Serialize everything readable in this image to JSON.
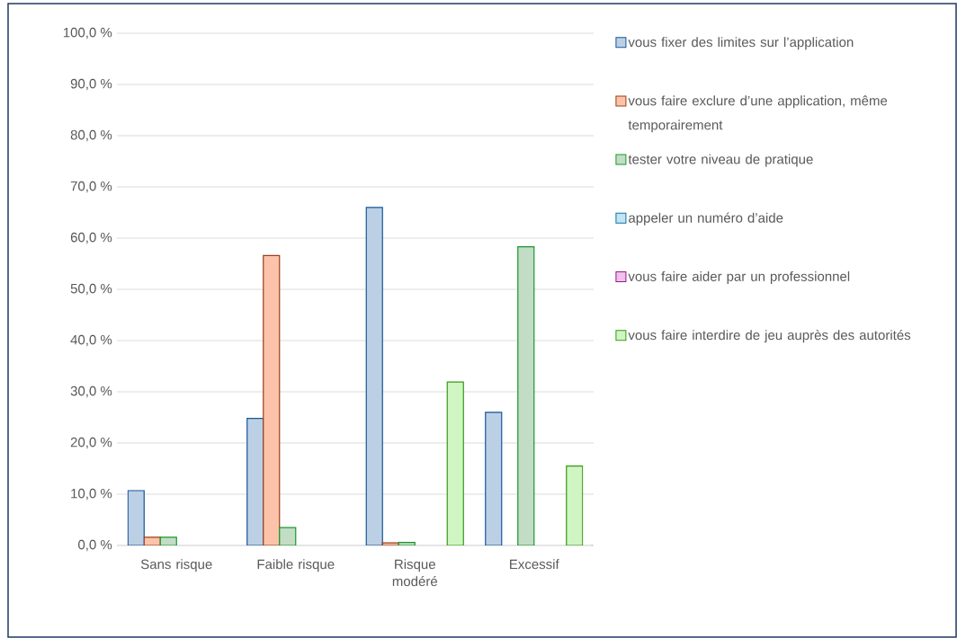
{
  "chart_data": {
    "type": "bar",
    "categories": [
      "Sans risque",
      "Faible risque",
      "Risque modéré",
      "Excessif"
    ],
    "series": [
      {
        "name": "vous fixer des limites sur l’application",
        "color": "#bcd0e5",
        "values": [
          10.7,
          24.8,
          66.0,
          26.0
        ]
      },
      {
        "name": "vous faire exclure d’une application, même temporairement",
        "color": "#fcc3aa",
        "values": [
          1.6,
          56.6,
          0.5,
          null
        ]
      },
      {
        "name": "tester votre niveau de pratique",
        "color": "#c3dcc6",
        "values": [
          1.6,
          3.5,
          0.6,
          58.3
        ]
      },
      {
        "name": "appeler un numéro d’aide",
        "color": "#bfe6f7",
        "values": [
          null,
          null,
          null,
          null
        ]
      },
      {
        "name": "vous faire aider par un professionnel",
        "color": "#eec2eb",
        "values": [
          null,
          null,
          null,
          null
        ]
      },
      {
        "name": "vous faire interdire de jeu auprès des autorités",
        "color": "#cff5c2",
        "values": [
          null,
          null,
          31.9,
          15.5
        ]
      }
    ],
    "ylim": [
      0,
      100
    ],
    "yticks": [
      {
        "value": 0,
        "label": "0,0 %"
      },
      {
        "value": 10,
        "label": "10,0 %"
      },
      {
        "value": 20,
        "label": "20,0 %"
      },
      {
        "value": 30,
        "label": "30,0 %"
      },
      {
        "value": 40,
        "label": "40,0 %"
      },
      {
        "value": 50,
        "label": "50,0 %"
      },
      {
        "value": 60,
        "label": "60,0 %"
      },
      {
        "value": 70,
        "label": "70,0 %"
      },
      {
        "value": 80,
        "label": "80,0 %"
      },
      {
        "value": 90,
        "label": "90,0 %"
      },
      {
        "value": 100,
        "label": "100,0 %"
      }
    ],
    "grid": "y",
    "legend": "right"
  }
}
